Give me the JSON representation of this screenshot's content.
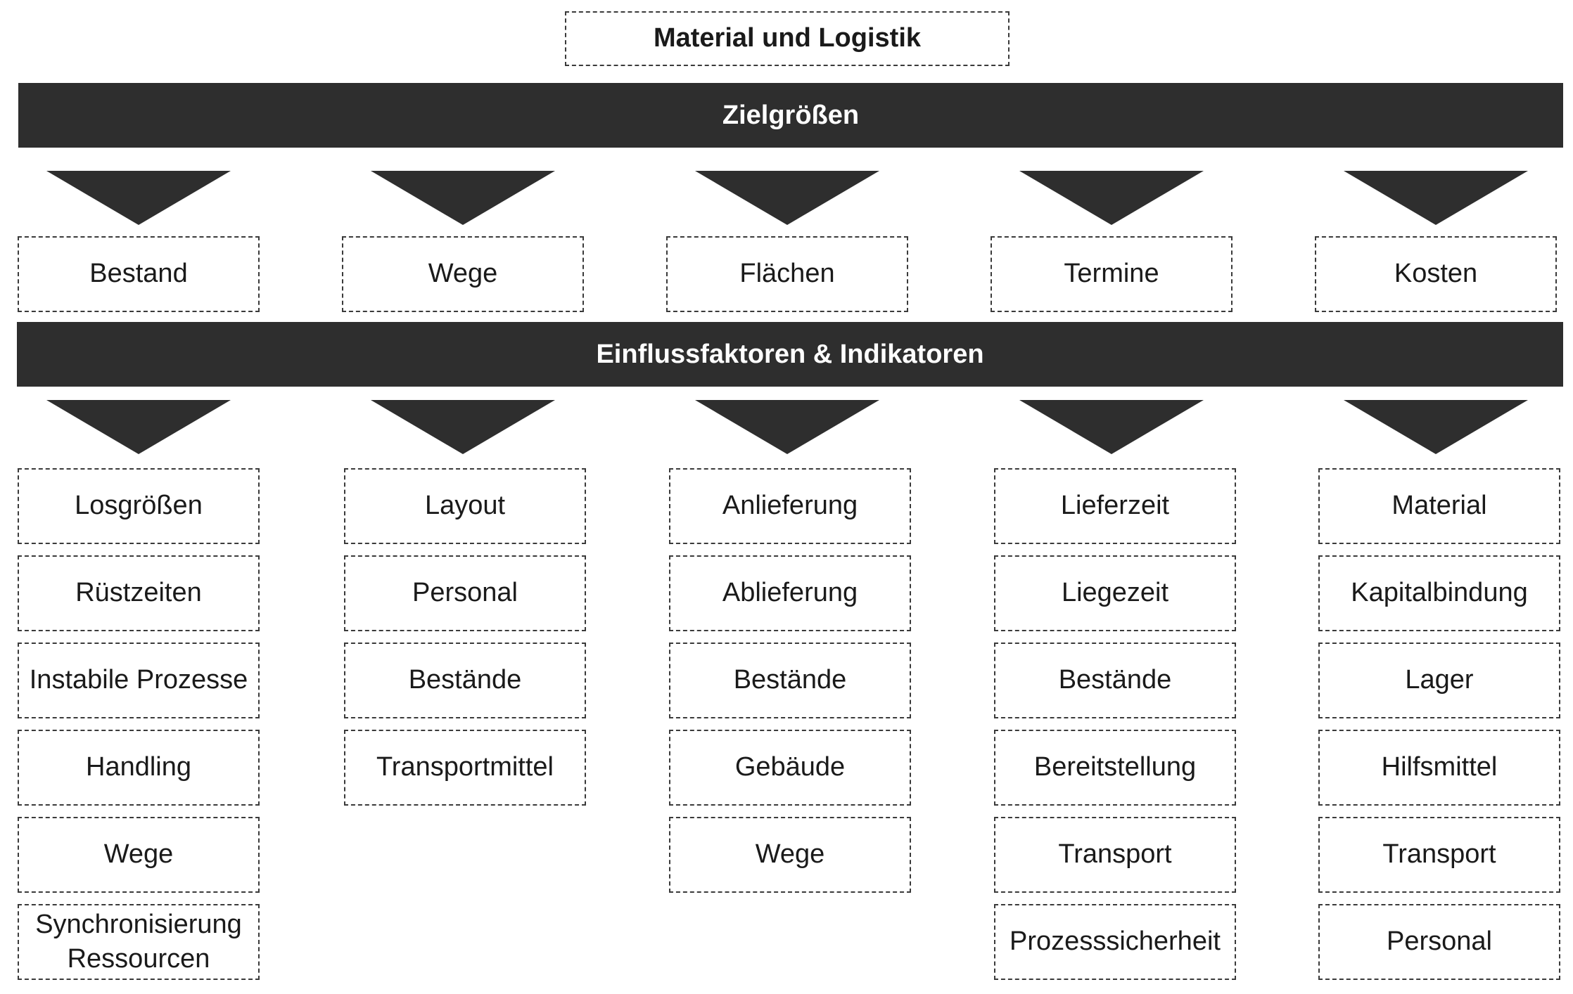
{
  "title": "Material und Logistik",
  "bar_targets": "Zielgrößen",
  "bar_factors": "Einflussfaktoren & Indikatoren",
  "columns": [
    {
      "goal": "Bestand",
      "factors": [
        "Losgrößen",
        "Rüstzeiten",
        "Instabile Prozesse",
        "Handling",
        "Wege",
        "Synchronisierung\nRessourcen"
      ]
    },
    {
      "goal": "Wege",
      "factors": [
        "Layout",
        "Personal",
        "Bestände",
        "Transportmittel"
      ]
    },
    {
      "goal": "Flächen",
      "factors": [
        "Anlieferung",
        "Ablieferung",
        "Bestände",
        "Gebäude",
        "Wege"
      ]
    },
    {
      "goal": "Termine",
      "factors": [
        "Lieferzeit",
        "Liegezeit",
        "Bestände",
        "Bereitstellung",
        "Transport",
        "Prozesssicherheit"
      ]
    },
    {
      "goal": "Kosten",
      "factors": [
        "Material",
        "Kapitalbindung",
        "Lager",
        "Hilfsmittel",
        "Transport",
        "Personal"
      ]
    }
  ]
}
